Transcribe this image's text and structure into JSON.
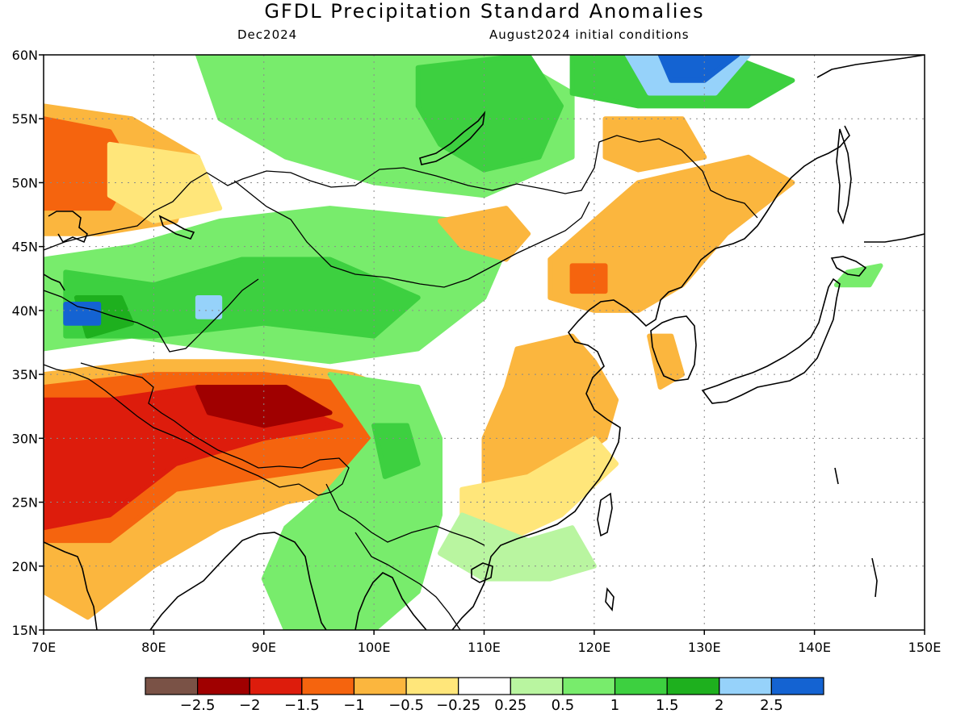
{
  "header": {
    "title": "GFDL Precipitation Standard Anomalies",
    "valid_month": "Dec2024",
    "init": "August2024 initial conditions"
  },
  "map": {
    "lon_range": [
      70,
      150
    ],
    "lat_range": [
      15,
      60
    ],
    "x_ticks": [
      "70E",
      "80E",
      "90E",
      "100E",
      "110E",
      "120E",
      "130E",
      "140E",
      "150E"
    ],
    "y_ticks": [
      "15N",
      "20N",
      "25N",
      "30N",
      "35N",
      "40N",
      "45N",
      "50N",
      "55N",
      "60N"
    ],
    "grid": true
  },
  "colorbar": {
    "colors": [
      "#7a5246",
      "#a00000",
      "#dd1c0c",
      "#f5640e",
      "#fbb63e",
      "#ffe67a",
      "#ffffff",
      "#b9f5a0",
      "#78ec6c",
      "#3dd040",
      "#1eb01e",
      "#96d2fa",
      "#1463d2"
    ],
    "labels": [
      "−2.5",
      "−2",
      "−1.5",
      "−1",
      "−0.5",
      "−0.25",
      "0.25",
      "0.5",
      "1",
      "1.5",
      "2",
      "2.5"
    ]
  },
  "anomaly_regions": [
    {
      "name": "northern-kazakhstan-dry",
      "color": "#fbb63e",
      "points": [
        [
          70,
          56
        ],
        [
          78,
          55
        ],
        [
          84,
          52
        ],
        [
          82,
          47
        ],
        [
          75,
          46
        ],
        [
          70,
          46
        ]
      ]
    },
    {
      "name": "northern-kazakhstan-dry-core",
      "color": "#f5640e",
      "points": [
        [
          70,
          55
        ],
        [
          76,
          54
        ],
        [
          78,
          51
        ],
        [
          76,
          48
        ],
        [
          70,
          48
        ]
      ]
    },
    {
      "name": "kazakhstan-moderate-dry",
      "color": "#ffe67a",
      "points": [
        [
          76,
          53
        ],
        [
          84,
          52
        ],
        [
          86,
          48
        ],
        [
          80,
          47
        ],
        [
          76,
          49
        ]
      ]
    },
    {
      "name": "siberia-wet",
      "color": "#78ec6c",
      "points": [
        [
          84,
          60
        ],
        [
          112,
          60
        ],
        [
          118,
          57
        ],
        [
          118,
          52
        ],
        [
          110,
          49
        ],
        [
          100,
          50
        ],
        [
          92,
          52
        ],
        [
          86,
          55
        ]
      ]
    },
    {
      "name": "siberia-wet-core",
      "color": "#3dd040",
      "points": [
        [
          104,
          59
        ],
        [
          114,
          60
        ],
        [
          117,
          56
        ],
        [
          115,
          52
        ],
        [
          110,
          51
        ],
        [
          106,
          53
        ],
        [
          104,
          56
        ]
      ]
    },
    {
      "name": "far-north-wet",
      "color": "#3dd040",
      "points": [
        [
          118,
          60
        ],
        [
          132,
          60
        ],
        [
          138,
          58
        ],
        [
          134,
          56
        ],
        [
          124,
          56
        ],
        [
          118,
          57
        ]
      ]
    },
    {
      "name": "far-north-very-wet",
      "color": "#96d2fa",
      "points": [
        [
          123,
          60
        ],
        [
          134,
          60
        ],
        [
          131,
          57
        ],
        [
          125,
          57
        ]
      ]
    },
    {
      "name": "far-north-extreme-wet",
      "color": "#1463d2",
      "points": [
        [
          126,
          60
        ],
        [
          133,
          60
        ],
        [
          130,
          58
        ],
        [
          127,
          58
        ]
      ]
    },
    {
      "name": "central-asia-wet",
      "color": "#78ec6c",
      "points": [
        [
          70,
          44
        ],
        [
          78,
          45
        ],
        [
          86,
          47
        ],
        [
          96,
          48
        ],
        [
          108,
          47
        ],
        [
          112,
          45
        ],
        [
          110,
          41
        ],
        [
          104,
          37
        ],
        [
          96,
          36
        ],
        [
          86,
          37
        ],
        [
          78,
          38
        ],
        [
          70,
          37
        ]
      ]
    },
    {
      "name": "central-asia-wet-core",
      "color": "#3dd040",
      "points": [
        [
          72,
          43
        ],
        [
          80,
          42
        ],
        [
          88,
          44
        ],
        [
          96,
          44
        ],
        [
          104,
          41
        ],
        [
          100,
          38
        ],
        [
          90,
          39
        ],
        [
          80,
          38
        ],
        [
          72,
          38
        ]
      ]
    },
    {
      "name": "central-asia-very-wet",
      "color": "#1eb01e",
      "points": [
        [
          73,
          41
        ],
        [
          77,
          41
        ],
        [
          78,
          39
        ],
        [
          74,
          38
        ]
      ]
    },
    {
      "name": "tajikistan-extreme-wet",
      "color": "#1463d2",
      "points": [
        [
          72,
          40.5
        ],
        [
          75,
          40.5
        ],
        [
          75,
          39
        ],
        [
          72,
          39
        ]
      ]
    },
    {
      "name": "tarim-extreme-wet",
      "color": "#96d2fa",
      "points": [
        [
          84,
          41
        ],
        [
          86,
          41
        ],
        [
          86,
          39.5
        ],
        [
          84,
          39.5
        ]
      ]
    },
    {
      "name": "tibet-dry",
      "color": "#fbb63e",
      "points": [
        [
          70,
          35
        ],
        [
          80,
          36
        ],
        [
          90,
          36
        ],
        [
          98,
          35
        ],
        [
          104,
          33
        ],
        [
          103,
          29
        ],
        [
          98,
          26
        ],
        [
          92,
          25
        ],
        [
          86,
          23
        ],
        [
          80,
          20
        ],
        [
          74,
          16
        ],
        [
          70,
          18
        ]
      ]
    },
    {
      "name": "tibet-dry-core",
      "color": "#f5640e",
      "points": [
        [
          70,
          34
        ],
        [
          80,
          35
        ],
        [
          90,
          35
        ],
        [
          100,
          34
        ],
        [
          102,
          32
        ],
        [
          98,
          28
        ],
        [
          90,
          27
        ],
        [
          82,
          26
        ],
        [
          76,
          22
        ],
        [
          70,
          22
        ]
      ]
    },
    {
      "name": "tibet-very-dry",
      "color": "#dd1c0c",
      "points": [
        [
          70,
          33
        ],
        [
          76,
          33
        ],
        [
          84,
          34
        ],
        [
          94,
          32
        ],
        [
          97,
          31
        ],
        [
          90,
          30
        ],
        [
          82,
          28
        ],
        [
          76,
          24
        ],
        [
          70,
          23
        ]
      ]
    },
    {
      "name": "tibet-extreme-dry",
      "color": "#a00000",
      "points": [
        [
          84,
          34
        ],
        [
          92,
          34
        ],
        [
          96,
          32
        ],
        [
          90,
          31
        ],
        [
          85,
          32
        ]
      ]
    },
    {
      "name": "yunnan-myanmar-wet",
      "color": "#78ec6c",
      "points": [
        [
          96,
          35
        ],
        [
          104,
          34
        ],
        [
          106,
          30
        ],
        [
          106,
          24
        ],
        [
          104,
          18
        ],
        [
          100,
          15
        ],
        [
          92,
          15
        ],
        [
          90,
          19
        ],
        [
          92,
          23
        ],
        [
          96,
          26
        ],
        [
          100,
          30
        ]
      ]
    },
    {
      "name": "yunnan-wet-core",
      "color": "#3dd040",
      "points": [
        [
          100,
          31
        ],
        [
          103,
          31
        ],
        [
          104,
          28
        ],
        [
          101,
          27
        ]
      ]
    },
    {
      "name": "mongolia-dry",
      "color": "#fbb63e",
      "points": [
        [
          106,
          47
        ],
        [
          112,
          48
        ],
        [
          114,
          46
        ],
        [
          112,
          44
        ],
        [
          108,
          45
        ]
      ]
    },
    {
      "name": "northeast-china-dry",
      "color": "#fbb63e",
      "points": [
        [
          116,
          44
        ],
        [
          124,
          50
        ],
        [
          134,
          52
        ],
        [
          138,
          50
        ],
        [
          132,
          46
        ],
        [
          128,
          42
        ],
        [
          124,
          40
        ],
        [
          120,
          40
        ],
        [
          116,
          41
        ]
      ]
    },
    {
      "name": "northeast-china-dry-core",
      "color": "#f5640e",
      "points": [
        [
          118,
          43.5
        ],
        [
          121,
          43.5
        ],
        [
          121,
          41.5
        ],
        [
          118,
          41.5
        ]
      ]
    },
    {
      "name": "amur-dry",
      "color": "#fbb63e",
      "points": [
        [
          121,
          55
        ],
        [
          128,
          55
        ],
        [
          130,
          52
        ],
        [
          124,
          51
        ],
        [
          121,
          52
        ]
      ]
    },
    {
      "name": "korea-dry",
      "color": "#fbb63e",
      "points": [
        [
          125,
          38
        ],
        [
          127,
          38
        ],
        [
          128,
          35
        ],
        [
          126,
          34
        ]
      ]
    },
    {
      "name": "east-china-dry",
      "color": "#fbb63e",
      "points": [
        [
          113,
          37
        ],
        [
          118,
          38
        ],
        [
          120,
          36
        ],
        [
          122,
          33
        ],
        [
          121,
          30
        ],
        [
          116,
          27
        ],
        [
          113,
          25
        ],
        [
          110,
          26
        ],
        [
          110,
          30
        ],
        [
          112,
          34
        ]
      ]
    },
    {
      "name": "south-china-dry",
      "color": "#ffe67a",
      "points": [
        [
          108,
          26
        ],
        [
          114,
          27
        ],
        [
          120,
          30
        ],
        [
          122,
          28
        ],
        [
          117,
          24
        ],
        [
          112,
          22
        ],
        [
          108,
          23
        ]
      ]
    },
    {
      "name": "sakhalin-japan-wet",
      "color": "#78ec6c",
      "points": [
        [
          143,
          43
        ],
        [
          146,
          43.5
        ],
        [
          145,
          42
        ],
        [
          142,
          42
        ]
      ]
    },
    {
      "name": "southeast-asia-moderate-wet",
      "color": "#b9f5a0",
      "points": [
        [
          108,
          24
        ],
        [
          114,
          22
        ],
        [
          118,
          23
        ],
        [
          120,
          20
        ],
        [
          116,
          19
        ],
        [
          110,
          19
        ],
        [
          106,
          21
        ]
      ]
    }
  ]
}
